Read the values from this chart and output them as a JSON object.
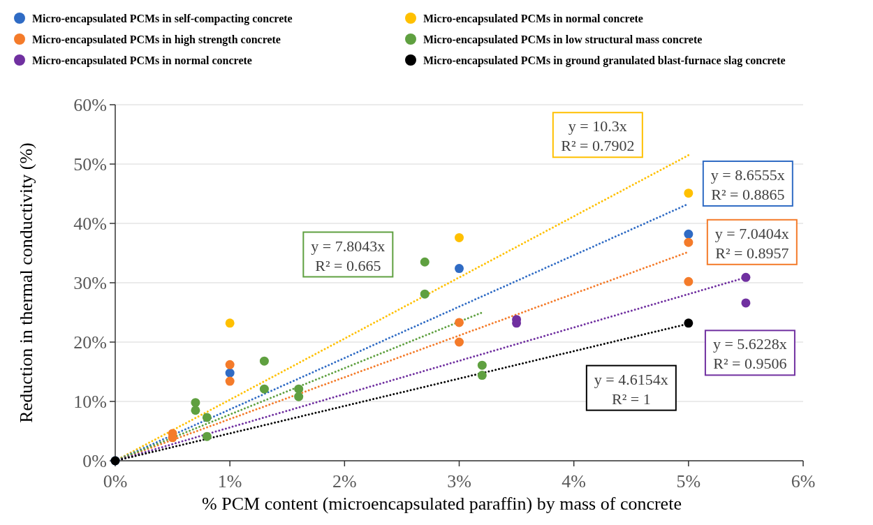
{
  "chart_data": {
    "type": "scatter",
    "xlabel": "% PCM content (microencapsulated paraffin) by mass of concrete",
    "ylabel": "Reduction in thermal conductivity (%)",
    "xlim": [
      0,
      6
    ],
    "ylim": [
      0,
      60
    ],
    "xticks": [
      {
        "value": 0,
        "label": "0%"
      },
      {
        "value": 1,
        "label": "1%"
      },
      {
        "value": 2,
        "label": "2%"
      },
      {
        "value": 3,
        "label": "3%"
      },
      {
        "value": 4,
        "label": "4%"
      },
      {
        "value": 5,
        "label": "5%"
      },
      {
        "value": 6,
        "label": "6%"
      }
    ],
    "yticks": [
      {
        "value": 0,
        "label": "0%"
      },
      {
        "value": 10,
        "label": "10%"
      },
      {
        "value": 20,
        "label": "20%"
      },
      {
        "value": 30,
        "label": "30%"
      },
      {
        "value": 40,
        "label": "40%"
      },
      {
        "value": 50,
        "label": "50%"
      },
      {
        "value": 60,
        "label": "60%"
      }
    ],
    "grid": "y",
    "legend": "top",
    "marker": "circle",
    "series": [
      {
        "name": "Micro-encapsulated PCMs in self-compacting concrete",
        "color": "#2f6bc4",
        "x": [
          0,
          1,
          3,
          5
        ],
        "values": [
          0,
          14.8,
          32.4,
          38.2
        ]
      },
      {
        "name": "Micro-encapsulated PCMs in high strength concrete",
        "color": "#f47b2a",
        "x": [
          0.5,
          0.5,
          1,
          1,
          3,
          3,
          5,
          5
        ],
        "values": [
          4.6,
          3.9,
          16.2,
          13.4,
          23.3,
          20.0,
          36.8,
          30.2
        ]
      },
      {
        "name": "Micro-encapsulated PCMs in normal concrete",
        "color": "#7030a0",
        "x": [
          3.5,
          3.5,
          5.5,
          5.5
        ],
        "values": [
          23.8,
          23.2,
          30.9,
          26.6
        ]
      },
      {
        "name": "Micro-encapsulated PCMs in normal concrete",
        "color": "#ffc000",
        "x": [
          1,
          3,
          5
        ],
        "values": [
          23.2,
          37.6,
          45.1
        ]
      },
      {
        "name": "Micro-encapsulated PCMs in low structural mass concrete",
        "color": "#5fa040",
        "x": [
          0.7,
          0.7,
          0.8,
          0.8,
          1.3,
          1.3,
          1.6,
          1.6,
          2.7,
          2.7,
          3.2,
          3.2
        ],
        "values": [
          9.8,
          8.5,
          7.3,
          4.1,
          16.8,
          12.1,
          12.1,
          10.8,
          33.5,
          28.1,
          16.1,
          14.4
        ]
      },
      {
        "name": "Micro-encapsulated PCMs in ground granulated blast-furnace slag concrete",
        "color": "#000000",
        "x": [
          0,
          5
        ],
        "values": [
          0,
          23.2
        ]
      },
      {
        "type": "line",
        "color": "#ffc000",
        "line_style": "dotted",
        "marker": "none",
        "x": [
          0,
          5
        ],
        "values": [
          0,
          51.5
        ]
      },
      {
        "type": "line",
        "color": "#2f6bc4",
        "line_style": "dotted",
        "marker": "none",
        "x": [
          0,
          5
        ],
        "values": [
          0,
          43.3
        ]
      },
      {
        "type": "line",
        "color": "#f47b2a",
        "line_style": "dotted",
        "marker": "none",
        "x": [
          0,
          5
        ],
        "values": [
          0,
          35.2
        ]
      },
      {
        "type": "line",
        "color": "#5fa040",
        "line_style": "dotted",
        "marker": "none",
        "x": [
          0,
          3.2
        ],
        "values": [
          0,
          25
        ]
      },
      {
        "type": "line",
        "color": "#7030a0",
        "line_style": "dotted",
        "marker": "none",
        "x": [
          0,
          5.5
        ],
        "values": [
          0,
          30.9
        ]
      },
      {
        "type": "line",
        "color": "#000000",
        "line_style": "dotted",
        "marker": "none",
        "x": [
          0,
          5
        ],
        "values": [
          0,
          23.1
        ]
      }
    ],
    "annotations": [
      "y = 10.3x\nR² = 0.7902",
      "y = 8.6555x\nR² = 0.8865",
      "y = 7.0404x\nR² = 0.8957",
      "y = 7.8043x\nR² = 0.665",
      "y = 5.6228x\nR² = 0.9506",
      "y = 4.6154x\nR² = 1"
    ]
  }
}
